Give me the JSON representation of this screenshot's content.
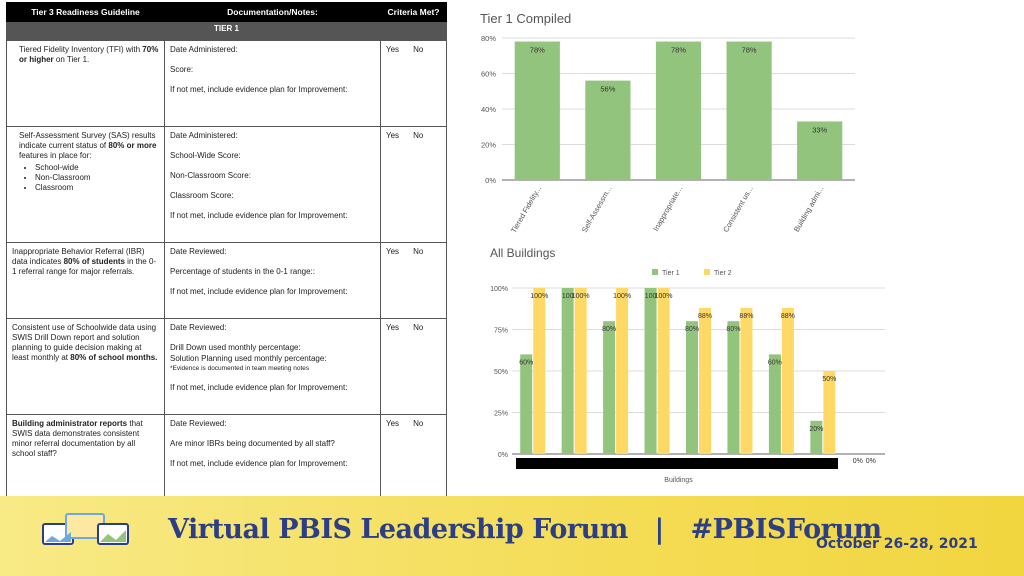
{
  "table": {
    "headers": [
      "Tier 3 Readiness Guideline",
      "Documentation/Notes:",
      "Criteria Met?"
    ],
    "tier_label": "TIER 1",
    "yes_label": "Yes",
    "no_label": "No",
    "rows": [
      {
        "criteria_pre": "Tiered Fidelity Inventory (TFI) with ",
        "criteria_bold": "70% or higher",
        "criteria_post": " on Tier 1.",
        "notes": [
          "Date Administered:",
          "Score:",
          "If not met, include evidence plan for Improvement:"
        ]
      },
      {
        "criteria_pre": "Self-Assessment Survey (SAS) results indicate current status of ",
        "criteria_bold": "80% or more",
        "criteria_post": " features in place for:",
        "bullets": [
          "School-wide",
          "Non-Classroom",
          "Classroom"
        ],
        "notes": [
          "Date Administered:",
          "School-Wide Score:",
          "Non-Classroom Score:",
          "Classroom Score:",
          "If not met, include evidence plan for Improvement:"
        ]
      },
      {
        "criteria_pre": "Inappropriate Behavior Referral (IBR) data indicates ",
        "criteria_bold": "80% of students",
        "criteria_post": " in the 0-1 referral range for major referrals.",
        "notes": [
          "Date Reviewed:",
          "Percentage of students in the 0-1 range::",
          "If not met, include evidence plan for Improvement:"
        ]
      },
      {
        "criteria_pre": "Consistent use of Schoolwide data using SWIS Drill Down report and solution planning to guide decision making at least monthly at ",
        "criteria_bold": "80% of school months.",
        "criteria_post": "",
        "notes_date": "Date Reviewed:",
        "notes_drill": "Drill Down used monthly percentage:",
        "notes_solution": "Solution Planning used monthly percentage:",
        "notes_evidence": "*Evidence is documented in team meeting notes",
        "notes_plan": "If not met, include evidence plan for Improvement:"
      },
      {
        "criteria_bold_first": "Building administrator reports",
        "criteria_post": " that SWIS data demonstrates consistent minor referral documentation by all school staff?",
        "notes": [
          "Date Reviewed:",
          "Are minor IBRs being documented by all staff?",
          "If not met, include evidence plan for Improvement:"
        ]
      }
    ]
  },
  "chart_data": [
    {
      "type": "bar",
      "title": "Tier 1 Compiled",
      "categories": [
        "Tiered Fidelity...",
        "Self-Assessm...",
        "Inappropriate...",
        "Consistent us...",
        "Building admi..."
      ],
      "values": [
        78,
        56,
        78,
        78,
        33
      ],
      "value_labels": [
        "78%",
        "56%",
        "78%",
        "78%",
        "33%"
      ],
      "ylim": [
        0,
        80
      ],
      "yticks": [
        "0%",
        "20%",
        "40%",
        "60%",
        "80%"
      ],
      "grid": true,
      "color": "#93c47d"
    },
    {
      "type": "bar",
      "title": "All Buildings",
      "xlabel": "Buildings",
      "legend_position": "top",
      "ylim": [
        0,
        100
      ],
      "yticks": [
        "0%",
        "25%",
        "50%",
        "75%",
        "100%"
      ],
      "grid": true,
      "series": [
        {
          "name": "Tier 1",
          "color": "#93c47d",
          "values": [
            60,
            100,
            80,
            100,
            80,
            80,
            60,
            20,
            0
          ],
          "value_labels": [
            "60%",
            "100",
            "80%",
            "100",
            "80%",
            "80%",
            "60%",
            "20%",
            "0%"
          ]
        },
        {
          "name": "Tier 2",
          "color": "#ffd966",
          "values": [
            100,
            100,
            100,
            100,
            88,
            88,
            88,
            50,
            0
          ],
          "value_labels": [
            "100%",
            "100%",
            "100%",
            "100%",
            "88%",
            "88%",
            "88%",
            "50%",
            "0%"
          ]
        }
      ]
    }
  ],
  "footer": {
    "title": "Virtual PBIS Leadership Forum   |   #PBISForum",
    "date": "October 26-28, 2021",
    "colors": {
      "text": "#2c3f86",
      "band": "#f4dc55"
    }
  }
}
